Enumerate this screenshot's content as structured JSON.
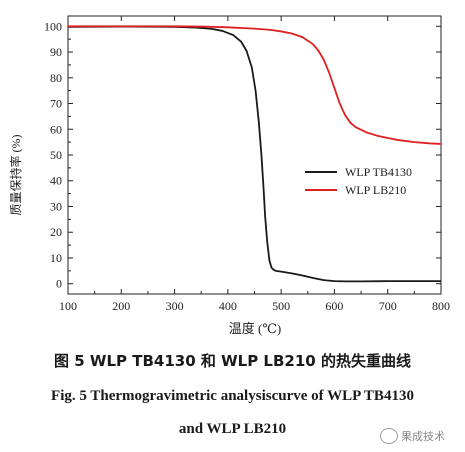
{
  "chart_data": {
    "type": "line",
    "xlabel": "温度 (℃)",
    "ylabel": "质量保持率 (%)",
    "xlim": [
      100,
      800
    ],
    "ylim": [
      -4,
      104
    ],
    "x_ticks": [
      100,
      200,
      300,
      400,
      500,
      600,
      700,
      800
    ],
    "y_ticks": [
      0,
      10,
      20,
      30,
      40,
      50,
      60,
      70,
      80,
      90,
      100
    ],
    "legend_position": "center-right",
    "series": [
      {
        "name": "WLP TB4130",
        "color": "#1a1a1a",
        "x": [
          100,
          200,
          300,
          340,
          370,
          390,
          410,
          425,
          435,
          445,
          452,
          458,
          463,
          467,
          470,
          474,
          478,
          482,
          486,
          490,
          500,
          520,
          540,
          560,
          580,
          600,
          620,
          650,
          700,
          750,
          800
        ],
        "y": [
          99.8,
          99.9,
          99.8,
          99.5,
          99.0,
          98.2,
          96.6,
          94.0,
          90.5,
          84.0,
          75.0,
          63.0,
          50.0,
          37.0,
          26.0,
          16.0,
          9.0,
          6.2,
          5.4,
          5.0,
          4.7,
          4.0,
          3.2,
          2.2,
          1.4,
          1.0,
          0.9,
          0.9,
          1.0,
          1.0,
          1.0
        ]
      },
      {
        "name": "WLP LB210",
        "color": "#e02020",
        "x": [
          100,
          200,
          300,
          350,
          400,
          450,
          480,
          500,
          520,
          540,
          560,
          570,
          580,
          590,
          600,
          610,
          620,
          630,
          640,
          660,
          680,
          700,
          720,
          750,
          780,
          800
        ],
        "y": [
          100,
          100,
          100,
          99.9,
          99.6,
          99.1,
          98.6,
          98.0,
          97.2,
          95.8,
          93.0,
          90.5,
          87.0,
          82.0,
          76.0,
          70.0,
          65.5,
          62.5,
          60.8,
          58.8,
          57.5,
          56.6,
          55.8,
          55.0,
          54.5,
          54.3
        ]
      }
    ]
  },
  "captions": {
    "cn": "图 5    WLP TB4130 和 WLP LB210 的热失重曲线",
    "en_line1": "Fig. 5    Thermogravimetric analysiscurve of WLP TB4130",
    "en_line2": "and WLP LB210"
  },
  "watermark": "果成技术"
}
